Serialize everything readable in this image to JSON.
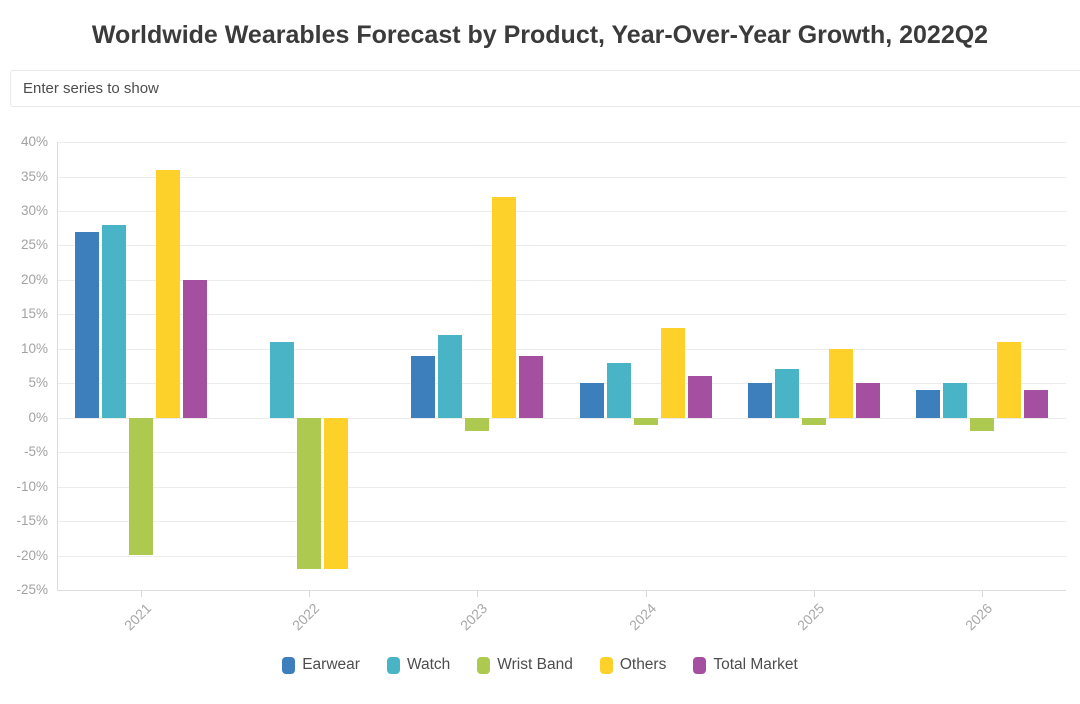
{
  "title": "Worldwide Wearables Forecast by Product, Year-Over-Year Growth, 2022Q2",
  "search": {
    "placeholder": "Enter series to show",
    "value": ""
  },
  "chart_data": {
    "type": "bar",
    "title": "Worldwide Wearables Forecast by Product, Year-Over-Year Growth, 2022Q2",
    "categories": [
      "2021",
      "2022",
      "2023",
      "2024",
      "2025",
      "2026"
    ],
    "series": [
      {
        "name": "Earwear",
        "color": "#3d7ebc",
        "values": [
          27,
          0,
          9,
          5,
          5,
          4
        ]
      },
      {
        "name": "Watch",
        "color": "#49b4c6",
        "values": [
          28,
          11,
          12,
          8,
          7,
          5
        ]
      },
      {
        "name": "Wrist Band",
        "color": "#adc94f",
        "values": [
          -20,
          -22,
          -2,
          -1,
          -1,
          -2
        ]
      },
      {
        "name": "Others",
        "color": "#fdd02a",
        "values": [
          36,
          -22,
          32,
          13,
          10,
          11
        ]
      },
      {
        "name": "Total Market",
        "color": "#a44fa0",
        "values": [
          20,
          0,
          9,
          6,
          5,
          4
        ]
      }
    ],
    "ylim": [
      -25,
      40
    ],
    "ytick_step": 5,
    "yticks": [
      "40%",
      "35%",
      "30%",
      "25%",
      "20%",
      "15%",
      "10%",
      "5%",
      "0%",
      "-5%",
      "-10%",
      "-15%",
      "-20%",
      "-25%"
    ],
    "xlabel": "",
    "ylabel": "",
    "grid": true,
    "legend_position": "bottom",
    "colors": {
      "axis_text": "#a2a2a2",
      "grid_line": "#ececec",
      "axis_line": "#dcdcdc",
      "title_text": "#3b3b3b",
      "legend_text": "#4d4d4d"
    }
  }
}
